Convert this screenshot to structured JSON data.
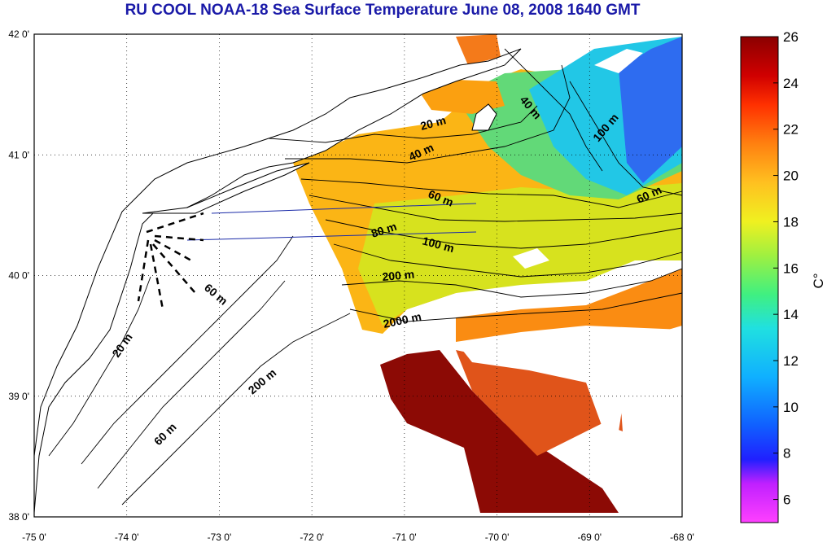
{
  "title": "RU COOL  NOAA-18 Sea Surface Temperature June 08, 2008 1640 GMT",
  "map": {
    "lon_ticks": [
      "-75 0'",
      "-74 0'",
      "-73 0'",
      "-72 0'",
      "-71 0'",
      "-70 0'",
      "-69 0'",
      "-68 0'"
    ],
    "lat_ticks": [
      "42 0'",
      "41 0'",
      "40 0'",
      "39 0'",
      "38 0'"
    ],
    "lon_range": [
      -75,
      -68
    ],
    "lat_range": [
      38,
      42
    ],
    "grid": "dotted",
    "isobath_labels": [
      "20 m",
      "40 m",
      "40 m",
      "60 m",
      "80 m",
      "100 m",
      "100 m",
      "60 m",
      "200 m",
      "2000 m",
      "60 m",
      "20 m",
      "200 m",
      "60 m"
    ]
  },
  "colorbar": {
    "unit": "C°",
    "ticks": [
      "26",
      "24",
      "22",
      "20",
      "18",
      "16",
      "14",
      "12",
      "10",
      "8",
      "6"
    ],
    "range": [
      5,
      26
    ],
    "colors": [
      "#ff40ff",
      "#c020ff",
      "#2020ff",
      "#1060ff",
      "#10b0ff",
      "#20e0e0",
      "#40f080",
      "#a0f040",
      "#f0f020",
      "#ffc020",
      "#ff8010",
      "#ff3000",
      "#d00000",
      "#8b0000"
    ]
  }
}
